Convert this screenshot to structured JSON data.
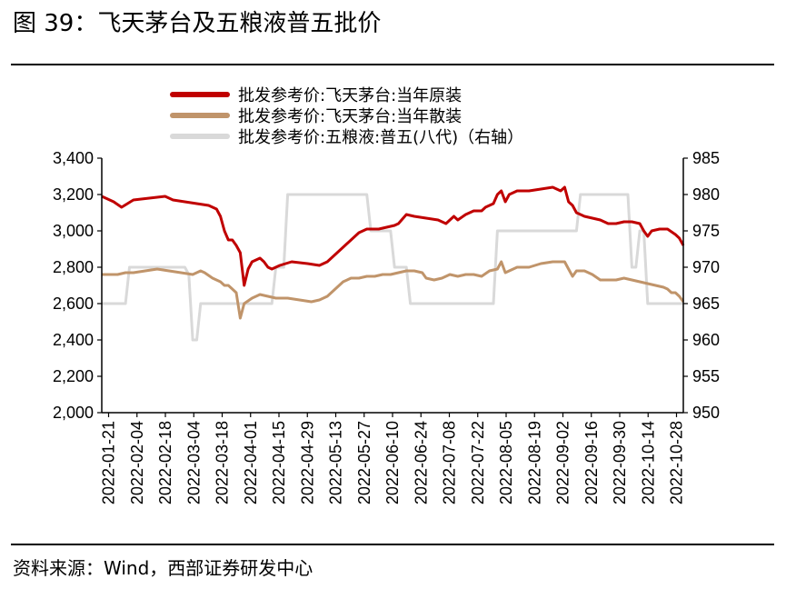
{
  "figure": {
    "title": "图 39：飞天茅台及五粮液普五批价",
    "source": "资料来源：Wind，西部证券研发中心"
  },
  "chart_data": {
    "type": "line",
    "x_tick_labels": [
      "2022-01-21",
      "2022-02-04",
      "2022-02-18",
      "2022-03-04",
      "2022-03-18",
      "2022-04-01",
      "2022-04-15",
      "2022-04-29",
      "2022-05-13",
      "2022-05-27",
      "2022-06-10",
      "2022-06-24",
      "2022-07-08",
      "2022-07-22",
      "2022-08-05",
      "2022-08-19",
      "2022-09-02",
      "2022-09-16",
      "2022-09-30",
      "2022-10-14",
      "2022-10-28"
    ],
    "left_axis": {
      "ylim": [
        2000,
        3400
      ],
      "ticks": [
        "2,000",
        "2,200",
        "2,400",
        "2,600",
        "2,800",
        "3,000",
        "3,200",
        "3,400"
      ],
      "tick_values": [
        2000,
        2200,
        2400,
        2600,
        2800,
        3000,
        3200,
        3400
      ]
    },
    "right_axis": {
      "ylim": [
        950,
        985
      ],
      "ticks": [
        "950",
        "955",
        "960",
        "965",
        "970",
        "975",
        "980",
        "985"
      ],
      "tick_values": [
        950,
        955,
        960,
        965,
        970,
        975,
        980,
        985
      ]
    },
    "grid": false,
    "legend_placement": "top",
    "series": [
      {
        "name": "批发参考价:飞天茅台:当年原装",
        "color": "#c00000",
        "axis": "left",
        "points": [
          [
            0,
            3190
          ],
          [
            3,
            3160
          ],
          [
            5,
            3130
          ],
          [
            8,
            3170
          ],
          [
            12,
            3180
          ],
          [
            16,
            3190
          ],
          [
            18,
            3170
          ],
          [
            21,
            3160
          ],
          [
            24,
            3150
          ],
          [
            27,
            3140
          ],
          [
            29,
            3120
          ],
          [
            30,
            3080
          ],
          [
            31,
            3000
          ],
          [
            32,
            2950
          ],
          [
            33,
            2950
          ],
          [
            34,
            2920
          ],
          [
            35,
            2880
          ],
          [
            36,
            2700
          ],
          [
            37,
            2790
          ],
          [
            38,
            2830
          ],
          [
            40,
            2850
          ],
          [
            41,
            2830
          ],
          [
            42,
            2800
          ],
          [
            43,
            2790
          ],
          [
            45,
            2810
          ],
          [
            48,
            2830
          ],
          [
            52,
            2820
          ],
          [
            55,
            2810
          ],
          [
            57,
            2830
          ],
          [
            59,
            2870
          ],
          [
            61,
            2910
          ],
          [
            63,
            2950
          ],
          [
            65,
            2990
          ],
          [
            67,
            3010
          ],
          [
            70,
            3010
          ],
          [
            72,
            3020
          ],
          [
            74,
            3030
          ],
          [
            75,
            3040
          ],
          [
            77,
            3090
          ],
          [
            79,
            3080
          ],
          [
            82,
            3070
          ],
          [
            85,
            3060
          ],
          [
            87,
            3040
          ],
          [
            89,
            3080
          ],
          [
            90,
            3060
          ],
          [
            92,
            3090
          ],
          [
            94,
            3110
          ],
          [
            96,
            3110
          ],
          [
            97,
            3130
          ],
          [
            99,
            3150
          ],
          [
            100,
            3200
          ],
          [
            101,
            3220
          ],
          [
            102,
            3160
          ],
          [
            103,
            3200
          ],
          [
            105,
            3220
          ],
          [
            108,
            3220
          ],
          [
            111,
            3230
          ],
          [
            114,
            3240
          ],
          [
            116,
            3220
          ],
          [
            117,
            3240
          ],
          [
            118,
            3160
          ],
          [
            119,
            3140
          ],
          [
            120,
            3100
          ],
          [
            122,
            3080
          ],
          [
            124,
            3070
          ],
          [
            126,
            3060
          ],
          [
            128,
            3040
          ],
          [
            130,
            3040
          ],
          [
            132,
            3050
          ],
          [
            134,
            3050
          ],
          [
            136,
            3040
          ],
          [
            137,
            3000
          ],
          [
            138,
            2970
          ],
          [
            139,
            3000
          ],
          [
            141,
            3010
          ],
          [
            143,
            3010
          ],
          [
            145,
            2980
          ],
          [
            146,
            2960
          ],
          [
            147,
            2920
          ]
        ]
      },
      {
        "name": "批发参考价:飞天茅台:当年散装",
        "color": "#c0946a",
        "axis": "left",
        "points": [
          [
            0,
            2760
          ],
          [
            4,
            2760
          ],
          [
            6,
            2770
          ],
          [
            8,
            2770
          ],
          [
            11,
            2780
          ],
          [
            14,
            2790
          ],
          [
            17,
            2780
          ],
          [
            20,
            2770
          ],
          [
            23,
            2760
          ],
          [
            25,
            2780
          ],
          [
            26,
            2770
          ],
          [
            28,
            2740
          ],
          [
            30,
            2720
          ],
          [
            31,
            2700
          ],
          [
            32,
            2700
          ],
          [
            33,
            2680
          ],
          [
            34,
            2660
          ],
          [
            35,
            2520
          ],
          [
            36,
            2600
          ],
          [
            38,
            2630
          ],
          [
            40,
            2650
          ],
          [
            42,
            2640
          ],
          [
            44,
            2630
          ],
          [
            47,
            2630
          ],
          [
            50,
            2620
          ],
          [
            53,
            2610
          ],
          [
            55,
            2620
          ],
          [
            57,
            2640
          ],
          [
            59,
            2680
          ],
          [
            61,
            2720
          ],
          [
            63,
            2740
          ],
          [
            65,
            2740
          ],
          [
            67,
            2750
          ],
          [
            69,
            2750
          ],
          [
            71,
            2760
          ],
          [
            73,
            2760
          ],
          [
            75,
            2770
          ],
          [
            77,
            2780
          ],
          [
            79,
            2780
          ],
          [
            81,
            2770
          ],
          [
            82,
            2740
          ],
          [
            84,
            2730
          ],
          [
            86,
            2740
          ],
          [
            88,
            2760
          ],
          [
            90,
            2750
          ],
          [
            92,
            2760
          ],
          [
            94,
            2760
          ],
          [
            96,
            2750
          ],
          [
            98,
            2780
          ],
          [
            100,
            2790
          ],
          [
            101,
            2830
          ],
          [
            102,
            2770
          ],
          [
            103,
            2780
          ],
          [
            105,
            2800
          ],
          [
            108,
            2800
          ],
          [
            111,
            2820
          ],
          [
            114,
            2830
          ],
          [
            117,
            2830
          ],
          [
            118,
            2790
          ],
          [
            119,
            2750
          ],
          [
            120,
            2780
          ],
          [
            122,
            2780
          ],
          [
            124,
            2760
          ],
          [
            126,
            2730
          ],
          [
            128,
            2730
          ],
          [
            130,
            2730
          ],
          [
            132,
            2740
          ],
          [
            134,
            2730
          ],
          [
            136,
            2720
          ],
          [
            138,
            2710
          ],
          [
            140,
            2700
          ],
          [
            142,
            2690
          ],
          [
            143,
            2680
          ],
          [
            144,
            2660
          ],
          [
            145,
            2660
          ],
          [
            146,
            2640
          ],
          [
            147,
            2610
          ]
        ]
      },
      {
        "name": "批发参考价:五粮液:普五(八代)（右轴）",
        "color": "#d9d9d9",
        "axis": "right",
        "points": [
          [
            0,
            965
          ],
          [
            6,
            965
          ],
          [
            7,
            970
          ],
          [
            21,
            970
          ],
          [
            22,
            969
          ],
          [
            23,
            960
          ],
          [
            24,
            960
          ],
          [
            25,
            965
          ],
          [
            43,
            965
          ],
          [
            44,
            970
          ],
          [
            46,
            970
          ],
          [
            47,
            980
          ],
          [
            67,
            980
          ],
          [
            68,
            975
          ],
          [
            73,
            975
          ],
          [
            74,
            970
          ],
          [
            76,
            970
          ],
          [
            77,
            970
          ],
          [
            78,
            965
          ],
          [
            99,
            965
          ],
          [
            100,
            975
          ],
          [
            120,
            975
          ],
          [
            121,
            980
          ],
          [
            133,
            980
          ],
          [
            134,
            970
          ],
          [
            135,
            970
          ],
          [
            136,
            975
          ],
          [
            137,
            975
          ],
          [
            138,
            965
          ],
          [
            147,
            965
          ]
        ]
      }
    ],
    "x_count": 148
  }
}
